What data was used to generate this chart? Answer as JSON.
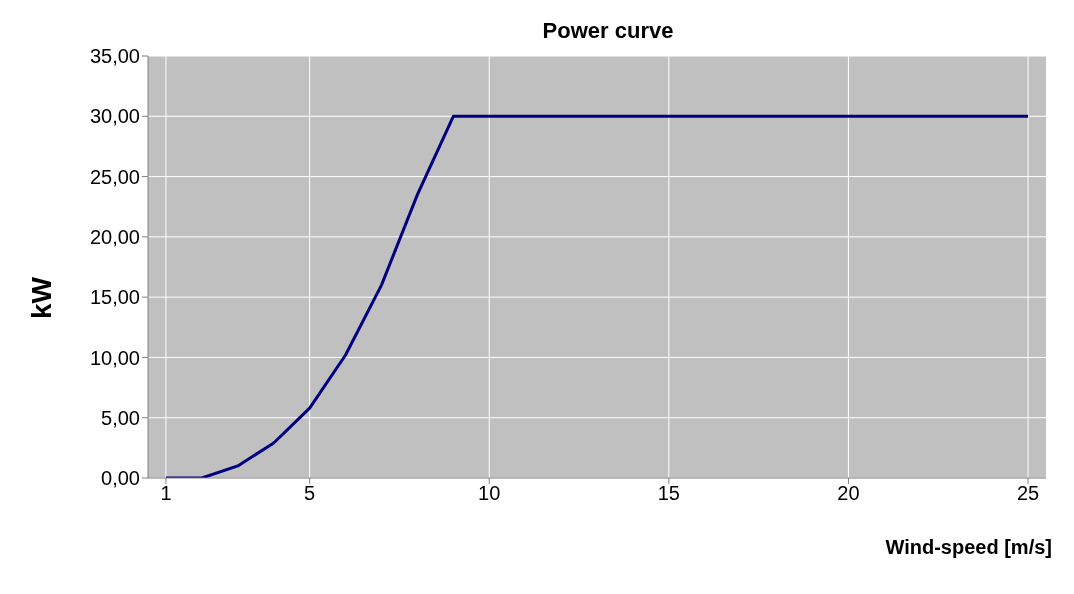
{
  "chart_data": {
    "type": "line",
    "title": "Power curve",
    "xlabel": "Wind-speed [m/s]",
    "ylabel": "kW",
    "x": [
      1,
      2,
      3,
      4,
      5,
      6,
      7,
      8,
      9,
      10,
      11,
      12,
      13,
      14,
      15,
      16,
      17,
      18,
      19,
      20,
      21,
      22,
      23,
      24,
      25
    ],
    "series": [
      {
        "color": "#000080",
        "values": [
          0,
          0,
          1,
          2.9,
          5.8,
          10.2,
          16,
          23.5,
          30,
          30,
          30,
          30,
          30,
          30,
          30,
          30,
          30,
          30,
          30,
          30,
          30,
          30,
          30,
          30,
          30
        ]
      }
    ],
    "xlim": [
      0.5,
      25.5
    ],
    "xticks": [
      1,
      5,
      10,
      15,
      20,
      25
    ],
    "ylim": [
      0,
      35
    ],
    "yticks": [
      {
        "value": 0,
        "label": "0,00"
      },
      {
        "value": 5,
        "label": "5,00"
      },
      {
        "value": 10,
        "label": "10,00"
      },
      {
        "value": 15,
        "label": "15,00"
      },
      {
        "value": 20,
        "label": "20,00"
      },
      {
        "value": 25,
        "label": "25,00"
      },
      {
        "value": 30,
        "label": "30,00"
      },
      {
        "value": 35,
        "label": "35,00"
      }
    ],
    "grid": true,
    "legend": false,
    "marker": "none",
    "line_style": "solid"
  }
}
